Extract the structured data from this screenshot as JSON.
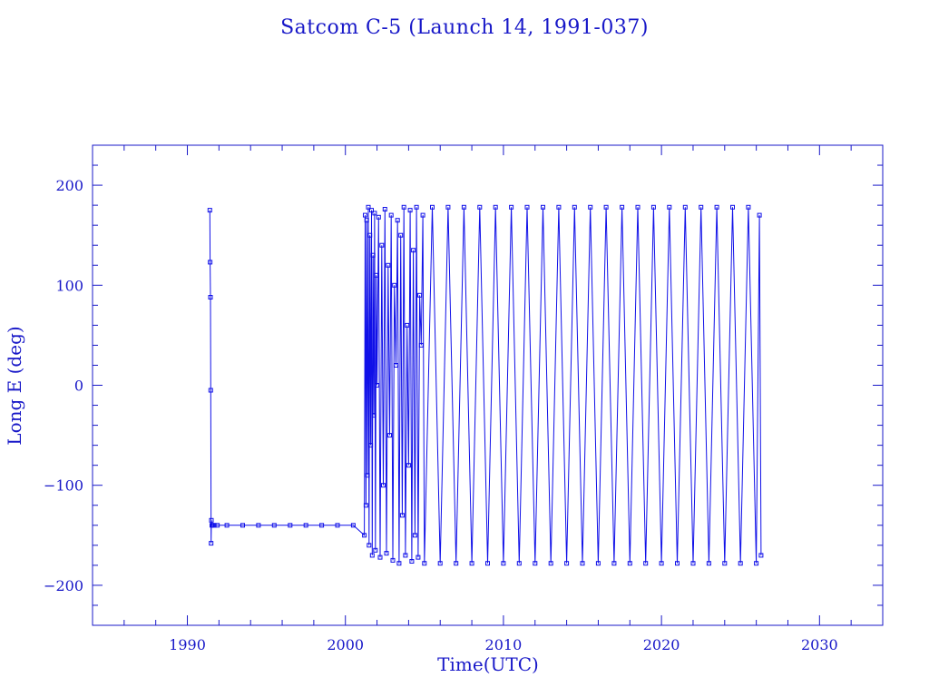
{
  "chart_data": {
    "type": "line",
    "title": "Satcom C-5 (Launch 14, 1991-037)",
    "xlabel": "Time(UTC)",
    "ylabel": "Long E (deg)",
    "xlim": [
      1984,
      2034
    ],
    "ylim": [
      -240,
      240
    ],
    "x_ticks": [
      1990,
      2000,
      2010,
      2020,
      2030
    ],
    "y_ticks": [
      -200,
      -100,
      0,
      100,
      200
    ],
    "x_minor_step": 2,
    "y_minor_step": 20,
    "grid": false,
    "legend": "none",
    "marker": "open-square",
    "color": "#1010e8",
    "series": [
      {
        "x": [
          1991.42,
          1991.44,
          1991.46,
          1991.48,
          1991.5,
          1991.52,
          1991.55,
          1991.6,
          1991.7,
          1991.9,
          1992.5,
          1993.5,
          1994.5,
          1995.5,
          1996.5,
          1997.5,
          1998.5,
          1999.5,
          2000.5,
          2001.2,
          2001.25,
          2001.3,
          2001.35,
          2001.4,
          2001.45,
          2001.5,
          2001.55,
          2001.6,
          2001.65,
          2001.7,
          2001.75,
          2001.8,
          2001.85,
          2001.9,
          2001.95,
          2002.0,
          2002.1,
          2002.2,
          2002.3,
          2002.4,
          2002.5,
          2002.6,
          2002.7,
          2002.8,
          2002.9,
          2003.0,
          2003.1,
          2003.2,
          2003.3,
          2003.4,
          2003.5,
          2003.6,
          2003.7,
          2003.8,
          2003.9,
          2004.0,
          2004.1,
          2004.2,
          2004.3,
          2004.4,
          2004.5,
          2004.6,
          2004.7,
          2004.8,
          2004.9,
          2005.0,
          2005.5,
          2006.0,
          2006.5,
          2007.0,
          2007.5,
          2008.0,
          2008.5,
          2009.0,
          2009.5,
          2010.0,
          2010.5,
          2011.0,
          2011.5,
          2012.0,
          2012.5,
          2013.0,
          2013.5,
          2014.0,
          2014.5,
          2015.0,
          2015.5,
          2016.0,
          2016.5,
          2017.0,
          2017.5,
          2018.0,
          2018.5,
          2019.0,
          2019.5,
          2020.0,
          2020.5,
          2021.0,
          2021.5,
          2022.0,
          2022.5,
          2023.0,
          2023.5,
          2024.0,
          2024.5,
          2025.0,
          2025.5,
          2026.0,
          2026.2,
          2026.3
        ],
        "y": [
          175,
          123,
          88,
          -5,
          -158,
          -135,
          -140,
          -140,
          -140,
          -140,
          -140,
          -140,
          -140,
          -140,
          -140,
          -140,
          -140,
          -140,
          -140,
          -150,
          170,
          -120,
          165,
          -90,
          178,
          -160,
          150,
          -60,
          175,
          -170,
          130,
          -30,
          172,
          -165,
          110,
          0,
          168,
          -172,
          140,
          -100,
          176,
          -168,
          120,
          -50,
          170,
          -175,
          100,
          20,
          165,
          -178,
          150,
          -130,
          178,
          -170,
          60,
          -80,
          175,
          -176,
          135,
          -150,
          178,
          -172,
          90,
          40,
          170,
          -178,
          178,
          -178,
          178,
          -178,
          178,
          -178,
          178,
          -178,
          178,
          -178,
          178,
          -178,
          178,
          -178,
          178,
          -178,
          178,
          -178,
          178,
          -178,
          178,
          -178,
          178,
          -178,
          178,
          -178,
          178,
          -178,
          178,
          -178,
          178,
          -178,
          178,
          -178,
          178,
          -178,
          178,
          -178,
          178,
          -178,
          178,
          -178,
          170,
          -170
        ]
      }
    ]
  }
}
